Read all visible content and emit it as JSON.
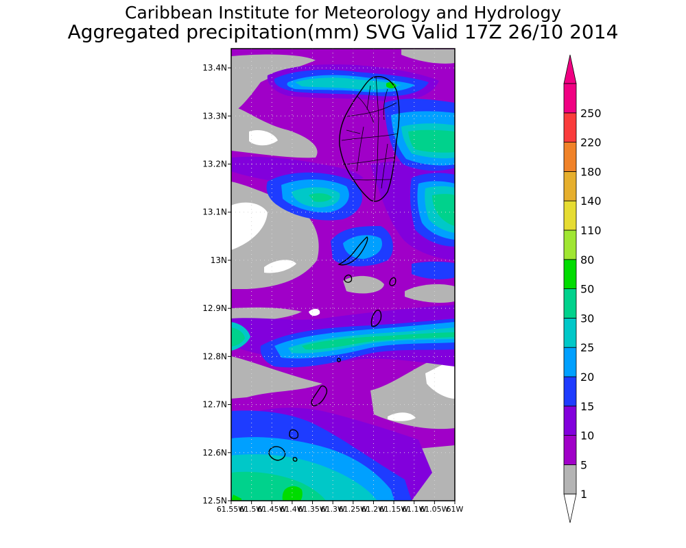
{
  "header": {
    "title": "Caribbean Institute for Meteorology and Hydrology",
    "subtitle": "Aggregated precipitation(mm) SVG Valid 17Z 26/10 2014"
  },
  "map": {
    "lat_labels": [
      "13.4N",
      "13.3N",
      "13.2N",
      "13.1N",
      "13N",
      "12.9N",
      "12.8N",
      "12.7N",
      "12.6N",
      "12.5N"
    ],
    "lon_labels": [
      "61.55W",
      "61.5W",
      "61.45W",
      "61.4W",
      "61.35W",
      "61.3W",
      "61.25W",
      "61.2W",
      "61.15W",
      "61.1W",
      "61.05W",
      "61W"
    ],
    "lat_range": [
      12.5,
      13.44
    ],
    "lon_range": [
      -61.55,
      -61.0
    ]
  },
  "legend": {
    "labels": [
      "1",
      "5",
      "10",
      "15",
      "20",
      "25",
      "30",
      "50",
      "80",
      "110",
      "140",
      "180",
      "220",
      "250"
    ],
    "colors": [
      "#b4b4b4",
      "#a000c8",
      "#8200dc",
      "#1e3cff",
      "#00a0ff",
      "#00c8c8",
      "#00d28c",
      "#00dc00",
      "#a0e632",
      "#e6dc32",
      "#e6af2d",
      "#f08228",
      "#fa3c3c",
      "#f00082"
    ],
    "top_arrow_color": "#f00082",
    "bottom_arrow_color": "#ffffff"
  }
}
